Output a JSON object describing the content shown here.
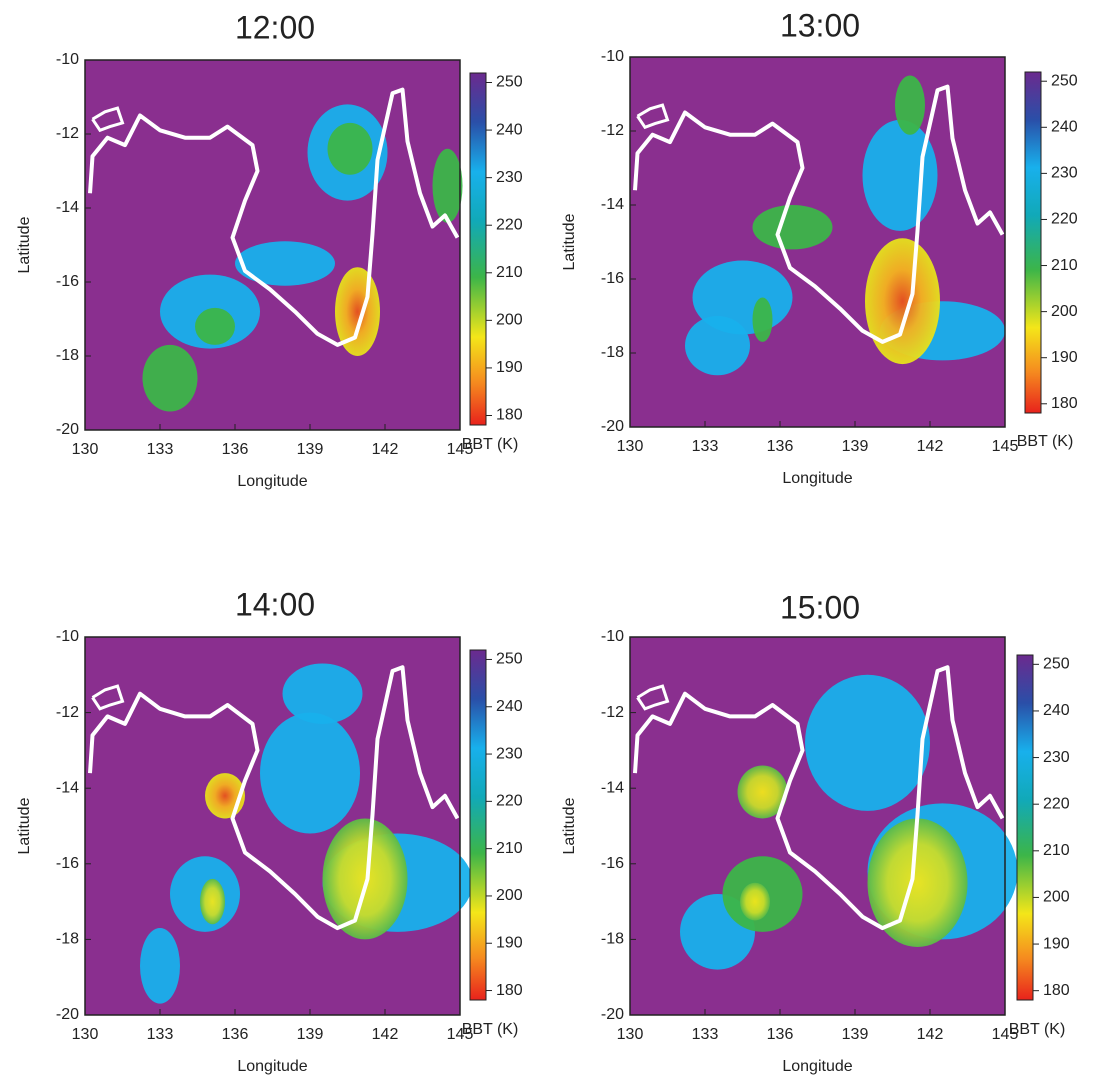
{
  "chart_data": [
    {
      "type": "heatmap",
      "title": "12:00",
      "xlabel": "Longitude",
      "ylabel": "Latitude",
      "xlim": [
        130,
        145
      ],
      "xticks": [
        130,
        133,
        136,
        139,
        142,
        145
      ],
      "ylim": [
        -20,
        -10
      ],
      "yticks": [
        -20,
        -18,
        -16,
        -14,
        -12,
        -10
      ],
      "colorbar": {
        "label": "BBT (K)",
        "lim": [
          178,
          252
        ],
        "ticks": [
          180,
          190,
          200,
          210,
          220,
          230,
          240,
          250
        ]
      }
    },
    {
      "type": "heatmap",
      "title": "13:00",
      "xlabel": "Longitude",
      "ylabel": "Latitude",
      "xlim": [
        130,
        145
      ],
      "xticks": [
        130,
        133,
        136,
        139,
        142,
        145
      ],
      "ylim": [
        -20,
        -10
      ],
      "yticks": [
        -20,
        -18,
        -16,
        -14,
        -12,
        -10
      ],
      "colorbar": {
        "label": "BBT (K)",
        "lim": [
          178,
          252
        ],
        "ticks": [
          180,
          190,
          200,
          210,
          220,
          230,
          240,
          250
        ]
      }
    },
    {
      "type": "heatmap",
      "title": "14:00",
      "xlabel": "Longitude",
      "ylabel": "Latitude",
      "xlim": [
        130,
        145
      ],
      "xticks": [
        130,
        133,
        136,
        139,
        142,
        145
      ],
      "ylim": [
        -20,
        -10
      ],
      "yticks": [
        -20,
        -18,
        -16,
        -14,
        -12,
        -10
      ],
      "colorbar": {
        "label": "BBT (K)",
        "lim": [
          178,
          252
        ],
        "ticks": [
          180,
          190,
          200,
          210,
          220,
          230,
          240,
          250
        ]
      }
    },
    {
      "type": "heatmap",
      "title": "15:00",
      "xlabel": "Longitude",
      "ylabel": "Latitude",
      "xlim": [
        130,
        145
      ],
      "xticks": [
        130,
        133,
        136,
        139,
        142,
        145
      ],
      "ylim": [
        -20,
        -10
      ],
      "yticks": [
        -20,
        -18,
        -16,
        -14,
        -12,
        -10
      ],
      "colorbar": {
        "label": "BBT (K)",
        "lim": [
          178,
          252
        ],
        "ticks": [
          180,
          190,
          200,
          210,
          220,
          230,
          240,
          250
        ]
      }
    }
  ]
}
